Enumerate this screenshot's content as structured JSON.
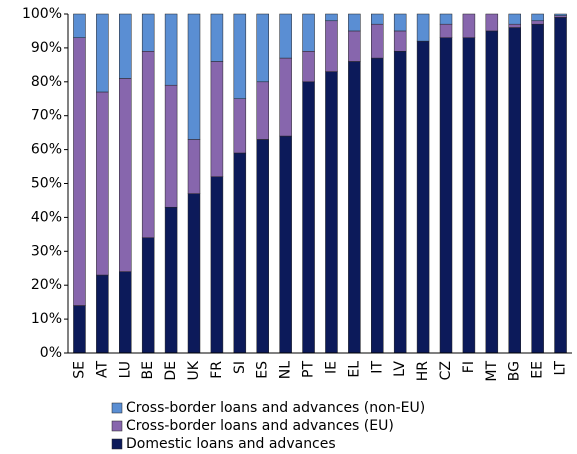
{
  "chart_data": {
    "type": "stacked-bar",
    "categories": [
      "SE",
      "AT",
      "LU",
      "BE",
      "DE",
      "UK",
      "FR",
      "SI",
      "ES",
      "NL",
      "PT",
      "IE",
      "EL",
      "IT",
      "LV",
      "HR",
      "CZ",
      "FI",
      "MT",
      "BG",
      "EE",
      "LT"
    ],
    "series": [
      {
        "name": "Domestic loans and advances",
        "color": "#0c1a5a",
        "values": [
          14,
          23,
          24,
          34,
          43,
          47,
          52,
          59,
          63,
          64,
          80,
          83,
          86,
          87,
          89,
          92,
          93,
          93,
          95,
          96,
          97,
          99
        ]
      },
      {
        "name": "Cross-border loans and advances (EU)",
        "color": "#8766ad",
        "values": [
          79,
          54,
          57,
          55,
          36,
          16,
          34,
          16,
          17,
          23,
          9,
          15,
          9,
          10,
          6,
          0,
          4,
          7,
          5,
          1,
          1,
          0.5
        ]
      },
      {
        "name": "Cross-border loans and advances (non-EU)",
        "color": "#5a8ed3",
        "values": [
          7,
          23,
          19,
          11,
          21,
          37,
          14,
          25,
          20,
          13,
          11,
          2,
          5,
          3,
          5,
          8,
          3,
          0,
          0,
          3,
          2,
          0.5
        ]
      }
    ],
    "ylim": [
      0,
      100
    ],
    "yticks": [
      {
        "value": 0,
        "label": "0%"
      },
      {
        "value": 10,
        "label": "10%"
      },
      {
        "value": 20,
        "label": "20%"
      },
      {
        "value": 30,
        "label": "30%"
      },
      {
        "value": 40,
        "label": "40%"
      },
      {
        "value": 50,
        "label": "50%"
      },
      {
        "value": 60,
        "label": "60%"
      },
      {
        "value": 70,
        "label": "70%"
      },
      {
        "value": 80,
        "label": "80%"
      },
      {
        "value": 90,
        "label": "90%"
      },
      {
        "value": 100,
        "label": "100%"
      }
    ],
    "grid": false
  }
}
